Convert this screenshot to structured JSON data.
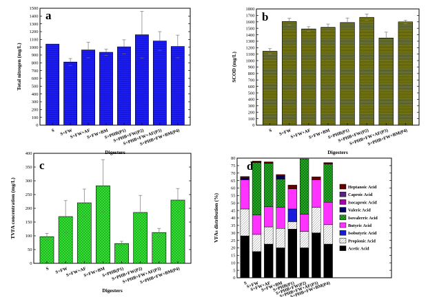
{
  "chart_data": [
    {
      "panel": "a",
      "type": "bar",
      "categories": [
        "S",
        "S+FW",
        "S+FW+AF",
        "S+FW+BM",
        "S+PHB(P1)",
        "S+PHB+FW(P2)",
        "S+PHB+FW+AF(P3)",
        "S+PHB+FW+BM(P4)"
      ],
      "values": [
        1040,
        810,
        965,
        935,
        1005,
        1160,
        1080,
        1010
      ],
      "errors": [
        0,
        45,
        100,
        40,
        90,
        300,
        120,
        145
      ],
      "xlabel": "Digesters",
      "ylabel": "Total nitrogen (mg/L)",
      "ylim": [
        0,
        1500
      ],
      "yticks": [
        0,
        100,
        200,
        300,
        400,
        500,
        600,
        700,
        800,
        900,
        1000,
        1100,
        1200,
        1300,
        1400,
        1500
      ],
      "color": "#1c1cf0",
      "grid": false
    },
    {
      "panel": "b",
      "type": "bar",
      "categories": [
        "S",
        "S+FW",
        "S+FW+AF",
        "S+FW+BM",
        "S+PHB(P1)",
        "S+PHB+FW(P2)",
        "S+PHB+FW+AF(P3)",
        "S+PHB+FW+BM(P4)"
      ],
      "values": [
        1145,
        1605,
        1490,
        1515,
        1590,
        1670,
        1350,
        1600
      ],
      "errors": [
        40,
        50,
        35,
        50,
        70,
        50,
        90,
        25
      ],
      "xlabel": "Digesters",
      "ylabel": "SCOD (mg/L)",
      "ylim": [
        0,
        1800
      ],
      "yticks": [
        0,
        100,
        200,
        300,
        400,
        500,
        600,
        700,
        800,
        900,
        1000,
        1100,
        1200,
        1300,
        1400,
        1500,
        1600,
        1700,
        1800
      ],
      "color": "#8a8a1a",
      "grid": false
    },
    {
      "panel": "c",
      "type": "bar",
      "categories": [
        "S",
        "S+FW",
        "S+FW+AF",
        "S+FW+BM",
        "S+PHB(P1)",
        "S+PHB+FW(P2)",
        "S+PHB+FW+AF(P3)",
        "S+PHB+FW+BM(P4)"
      ],
      "values": [
        97,
        170,
        220,
        282,
        72,
        185,
        112,
        230
      ],
      "errors": [
        12,
        58,
        50,
        95,
        8,
        62,
        15,
        42
      ],
      "xlabel": "Digesters",
      "ylabel": "TVFA concentration (mg/L)",
      "ylim": [
        0,
        400
      ],
      "yticks": [
        0,
        50,
        100,
        150,
        200,
        250,
        300,
        350,
        400
      ],
      "color": "#33dd33",
      "grid": false
    },
    {
      "panel": "d",
      "type": "bar",
      "stacked": true,
      "categories": [
        "S",
        "S+FW",
        "S+FW+AF",
        "S+FW+BM",
        "S+PHB(P1)",
        "S+PHB+FW(P2)",
        "S+PHB+FW+AF(P3)",
        "S+PHB+FW+BM(P4)"
      ],
      "series": [
        {
          "name": "Acetic Acid",
          "color": "#000000",
          "values": [
            28,
            17.5,
            22.5,
            20,
            32.5,
            20,
            30,
            22.5
          ]
        },
        {
          "name": "Propionic Acid",
          "color": "#ffffff",
          "values": [
            18,
            11.5,
            11.5,
            13,
            5,
            11,
            17,
            13
          ]
        },
        {
          "name": "Isobutyric Acid",
          "color": "#1a1add",
          "values": [
            0,
            0,
            0,
            0,
            8.5,
            0,
            0,
            0
          ]
        },
        {
          "name": "Butyric Acid",
          "color": "#ff33ff",
          "values": [
            19.5,
            13,
            13.5,
            14,
            13.5,
            11.5,
            18.5,
            15
          ]
        },
        {
          "name": "Isovalerric Acid",
          "color": "#22aa22",
          "values": [
            0,
            35,
            29,
            19,
            0,
            37,
            0,
            25.5
          ]
        },
        {
          "name": "Valeric Acid",
          "color": "#000066",
          "values": [
            1.2,
            0,
            0,
            2,
            0,
            0,
            0,
            0
          ]
        },
        {
          "name": "Isocaproic Acid",
          "color": "#aa00aa",
          "values": [
            0,
            0,
            0,
            0,
            0,
            0,
            0,
            0
          ]
        },
        {
          "name": "Caproic Acid",
          "color": "#552288",
          "values": [
            0,
            0,
            0,
            0,
            0,
            0,
            0,
            0
          ]
        },
        {
          "name": "Heptanoic Acid",
          "color": "#660000",
          "values": [
            1,
            1,
            1,
            1,
            2.5,
            0,
            2,
            1
          ]
        }
      ],
      "xlabel": "Digesters",
      "ylabel": "VFAs distribution (%)",
      "ylim": [
        0,
        80
      ],
      "yticks": [
        0,
        5,
        10,
        15,
        20,
        25,
        30,
        35,
        40,
        45,
        50,
        55,
        60,
        65,
        70,
        75,
        80
      ],
      "legend_order": [
        "Heptanoic Acid",
        "Caproic Acid",
        "Isocaproic Acid",
        "Valeric Acid",
        "Isovalerric Acid",
        "Butyric Acid",
        "Isobutyric Acid",
        "Propionic Acid",
        "Acetic Acid"
      ],
      "legend_position": "right",
      "grid": false
    }
  ]
}
